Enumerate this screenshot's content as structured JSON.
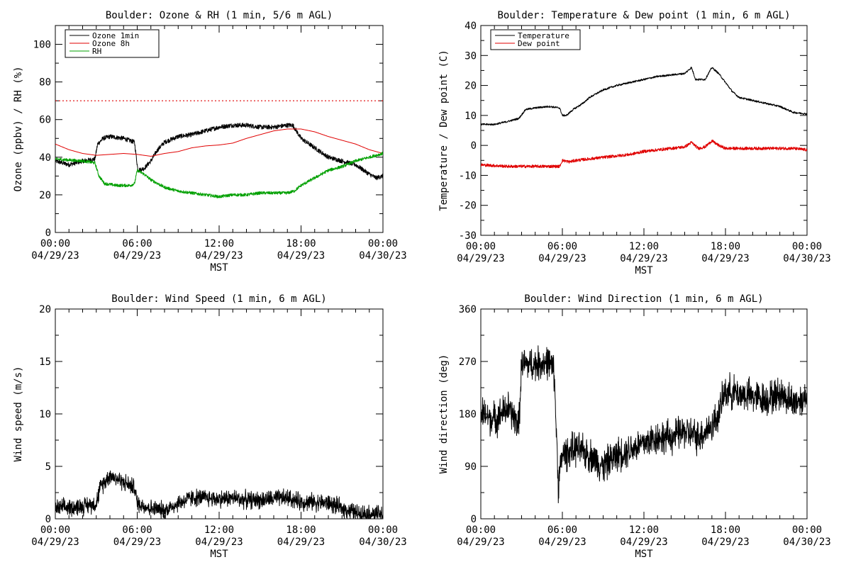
{
  "chart_data": [
    {
      "type": "line",
      "title": "Boulder: Ozone & RH (1 min, 5/6 m AGL)",
      "ylabel": "Ozone (ppbv) / RH (%)",
      "xlabel": "MST",
      "xlim": [
        0,
        24
      ],
      "ylim": [
        0,
        110
      ],
      "y_ticks": [
        0,
        20,
        40,
        60,
        80,
        100
      ],
      "x_ticks": [
        {
          "t": 0,
          "time": "00:00",
          "date": "04/29/23"
        },
        {
          "t": 6,
          "time": "06:00",
          "date": "04/29/23"
        },
        {
          "t": 12,
          "time": "12:00",
          "date": "04/29/23"
        },
        {
          "t": 18,
          "time": "18:00",
          "date": "04/29/23"
        },
        {
          "t": 24,
          "time": "00:00",
          "date": "04/30/23"
        }
      ],
      "legend_position": "top-left",
      "reference_line": {
        "y": 70,
        "color": "#e00000",
        "style": "dotted"
      },
      "series": [
        {
          "name": "Ozone 1min",
          "color": "#000000",
          "noise": 1.2,
          "points": [
            [
              0,
              38
            ],
            [
              1,
              36
            ],
            [
              2,
              38
            ],
            [
              2.9,
              39
            ],
            [
              3.1,
              47
            ],
            [
              3.5,
              50
            ],
            [
              4,
              51
            ],
            [
              5,
              50
            ],
            [
              5.8,
              48
            ],
            [
              6.05,
              33
            ],
            [
              6.5,
              34
            ],
            [
              7,
              38
            ],
            [
              7.5,
              44
            ],
            [
              8,
              48
            ],
            [
              9,
              51
            ],
            [
              10,
              52
            ],
            [
              11,
              54
            ],
            [
              12,
              56
            ],
            [
              13,
              57
            ],
            [
              14,
              57
            ],
            [
              15,
              56
            ],
            [
              16,
              56
            ],
            [
              17,
              57
            ],
            [
              17.4,
              57
            ],
            [
              18,
              50
            ],
            [
              19,
              45
            ],
            [
              20,
              40
            ],
            [
              21,
              38
            ],
            [
              22,
              36
            ],
            [
              23,
              31
            ],
            [
              23.5,
              29
            ],
            [
              24,
              30
            ]
          ]
        },
        {
          "name": "Ozone 8h",
          "color": "#e00000",
          "noise": 0,
          "points": [
            [
              0,
              47
            ],
            [
              1,
              44
            ],
            [
              2,
              42
            ],
            [
              3,
              41
            ],
            [
              4,
              41.5
            ],
            [
              5,
              42
            ],
            [
              6,
              41.5
            ],
            [
              7,
              40.5
            ],
            [
              8,
              42
            ],
            [
              9,
              43
            ],
            [
              10,
              45
            ],
            [
              11,
              46
            ],
            [
              12,
              46.5
            ],
            [
              13,
              47.5
            ],
            [
              14,
              50
            ],
            [
              15,
              52
            ],
            [
              16,
              54
            ],
            [
              17,
              55
            ],
            [
              18,
              55
            ],
            [
              19,
              53.5
            ],
            [
              20,
              51
            ],
            [
              21,
              49
            ],
            [
              22,
              47
            ],
            [
              23,
              44
            ],
            [
              24,
              42
            ]
          ]
        },
        {
          "name": "RH",
          "color": "#00a000",
          "noise": 0.8,
          "points": [
            [
              0,
              39
            ],
            [
              2,
              38
            ],
            [
              2.9,
              37
            ],
            [
              3.2,
              30
            ],
            [
              3.6,
              26
            ],
            [
              4.5,
              25
            ],
            [
              5.5,
              25
            ],
            [
              5.8,
              26
            ],
            [
              6,
              33
            ],
            [
              6.5,
              31
            ],
            [
              7,
              28
            ],
            [
              8,
              24
            ],
            [
              9,
              22
            ],
            [
              10,
              21
            ],
            [
              11,
              20
            ],
            [
              12,
              19
            ],
            [
              13,
              20
            ],
            [
              14,
              20
            ],
            [
              15,
              21
            ],
            [
              16,
              21
            ],
            [
              17,
              21
            ],
            [
              17.5,
              22
            ],
            [
              18,
              25
            ],
            [
              19,
              29
            ],
            [
              20,
              33
            ],
            [
              21,
              35
            ],
            [
              22,
              38
            ],
            [
              23,
              40
            ],
            [
              24,
              42
            ]
          ]
        }
      ]
    },
    {
      "type": "line",
      "title": "Boulder: Temperature & Dew point (1 min, 6 m AGL)",
      "ylabel": "Temperature / Dew point (C)",
      "xlabel": "MST",
      "xlim": [
        0,
        24
      ],
      "ylim": [
        -30,
        40
      ],
      "y_ticks": [
        -30,
        -20,
        -10,
        0,
        10,
        20,
        30,
        40
      ],
      "x_ticks": [
        {
          "t": 0,
          "time": "00:00",
          "date": "04/29/23"
        },
        {
          "t": 6,
          "time": "06:00",
          "date": "04/29/23"
        },
        {
          "t": 12,
          "time": "12:00",
          "date": "04/29/23"
        },
        {
          "t": 18,
          "time": "18:00",
          "date": "04/29/23"
        },
        {
          "t": 24,
          "time": "00:00",
          "date": "04/30/23"
        }
      ],
      "legend_position": "top-left",
      "series": [
        {
          "name": "Temperature",
          "color": "#000000",
          "noise": 0.3,
          "points": [
            [
              0,
              7
            ],
            [
              1,
              7
            ],
            [
              2,
              8
            ],
            [
              2.8,
              9
            ],
            [
              3.3,
              12
            ],
            [
              4,
              12.5
            ],
            [
              5,
              13
            ],
            [
              5.8,
              12.5
            ],
            [
              6,
              10
            ],
            [
              6.3,
              10
            ],
            [
              6.8,
              12
            ],
            [
              7.5,
              14
            ],
            [
              8,
              16
            ],
            [
              9,
              18.5
            ],
            [
              10,
              20
            ],
            [
              11,
              21
            ],
            [
              12,
              22
            ],
            [
              13,
              23
            ],
            [
              14,
              23.5
            ],
            [
              15,
              24
            ],
            [
              15.5,
              26
            ],
            [
              15.8,
              22
            ],
            [
              16.5,
              22
            ],
            [
              17,
              26
            ],
            [
              17.5,
              24
            ],
            [
              18,
              21
            ],
            [
              18.5,
              18
            ],
            [
              19,
              16
            ],
            [
              20,
              15
            ],
            [
              21,
              14
            ],
            [
              22,
              13
            ],
            [
              23,
              11
            ],
            [
              24,
              10.5
            ]
          ]
        },
        {
          "name": "Dew point",
          "color": "#e00000",
          "noise": 0.5,
          "points": [
            [
              0,
              -6.5
            ],
            [
              2,
              -7
            ],
            [
              3,
              -7
            ],
            [
              4,
              -7
            ],
            [
              5,
              -7
            ],
            [
              5.8,
              -7
            ],
            [
              6,
              -5
            ],
            [
              6.5,
              -5.5
            ],
            [
              7,
              -5
            ],
            [
              8,
              -4.5
            ],
            [
              9,
              -4
            ],
            [
              10,
              -3.5
            ],
            [
              11,
              -3
            ],
            [
              12,
              -2
            ],
            [
              13,
              -1.5
            ],
            [
              14,
              -1
            ],
            [
              15,
              -0.5
            ],
            [
              15.5,
              1
            ],
            [
              16,
              -1
            ],
            [
              16.5,
              -0.5
            ],
            [
              17,
              1.5
            ],
            [
              17.5,
              0
            ],
            [
              18,
              -1
            ],
            [
              19,
              -1
            ],
            [
              20,
              -1
            ],
            [
              21,
              -1
            ],
            [
              22,
              -1
            ],
            [
              23,
              -1
            ],
            [
              24,
              -1.5
            ]
          ]
        }
      ]
    },
    {
      "type": "line",
      "title": "Boulder: Wind Speed (1 min, 6 m AGL)",
      "ylabel": "Wind speed (m/s)",
      "xlabel": "MST",
      "xlim": [
        0,
        24
      ],
      "ylim": [
        0,
        20
      ],
      "y_ticks": [
        0,
        5,
        10,
        15,
        20
      ],
      "x_ticks": [
        {
          "t": 0,
          "time": "00:00",
          "date": "04/29/23"
        },
        {
          "t": 6,
          "time": "06:00",
          "date": "04/29/23"
        },
        {
          "t": 12,
          "time": "12:00",
          "date": "04/29/23"
        },
        {
          "t": 18,
          "time": "18:00",
          "date": "04/29/23"
        },
        {
          "t": 24,
          "time": "00:00",
          "date": "04/30/23"
        }
      ],
      "series": [
        {
          "name": "",
          "color": "#000000",
          "noise": 0.8,
          "points": [
            [
              0,
              1
            ],
            [
              2,
              1.2
            ],
            [
              3,
              1.5
            ],
            [
              3.3,
              3
            ],
            [
              4,
              4.2
            ],
            [
              5,
              3.5
            ],
            [
              5.8,
              3
            ],
            [
              6,
              1.5
            ],
            [
              7,
              1
            ],
            [
              8,
              0.8
            ],
            [
              9,
              1.5
            ],
            [
              10,
              2
            ],
            [
              11,
              2
            ],
            [
              12,
              1.9
            ],
            [
              13,
              2
            ],
            [
              14,
              1.8
            ],
            [
              15,
              1.8
            ],
            [
              16,
              1.9
            ],
            [
              17,
              2
            ],
            [
              18,
              1.6
            ],
            [
              19,
              1.6
            ],
            [
              20,
              1.5
            ],
            [
              21,
              1
            ],
            [
              22,
              0.6
            ],
            [
              23,
              0.5
            ],
            [
              24,
              0.4
            ]
          ]
        }
      ]
    },
    {
      "type": "line",
      "title": "Boulder: Wind Direction (1 min, 6 m AGL)",
      "ylabel": "Wind direction (deg)",
      "xlabel": "MST",
      "xlim": [
        0,
        24
      ],
      "ylim": [
        0,
        360
      ],
      "y_ticks": [
        0,
        90,
        180,
        270,
        360
      ],
      "x_ticks": [
        {
          "t": 0,
          "time": "00:00",
          "date": "04/29/23"
        },
        {
          "t": 6,
          "time": "06:00",
          "date": "04/29/23"
        },
        {
          "t": 12,
          "time": "12:00",
          "date": "04/29/23"
        },
        {
          "t": 18,
          "time": "18:00",
          "date": "04/29/23"
        },
        {
          "t": 24,
          "time": "00:00",
          "date": "04/30/23"
        }
      ],
      "series": [
        {
          "name": "",
          "color": "#000000",
          "noise": 28,
          "points": [
            [
              0,
              180
            ],
            [
              1,
              170
            ],
            [
              2,
              190
            ],
            [
              2.8,
              160
            ],
            [
              3,
              265
            ],
            [
              4,
              265
            ],
            [
              5,
              270
            ],
            [
              5.4,
              250
            ],
            [
              5.7,
              60
            ],
            [
              6,
              110
            ],
            [
              7,
              120
            ],
            [
              8,
              110
            ],
            [
              9,
              90
            ],
            [
              10,
              110
            ],
            [
              11,
              120
            ],
            [
              12,
              130
            ],
            [
              13,
              140
            ],
            [
              14,
              140
            ],
            [
              15,
              150
            ],
            [
              16,
              140
            ],
            [
              17,
              160
            ],
            [
              17.5,
              180
            ],
            [
              18,
              220
            ],
            [
              19,
              215
            ],
            [
              20,
              210
            ],
            [
              21,
              205
            ],
            [
              22,
              215
            ],
            [
              23,
              200
            ],
            [
              24,
              210
            ]
          ]
        }
      ]
    }
  ]
}
